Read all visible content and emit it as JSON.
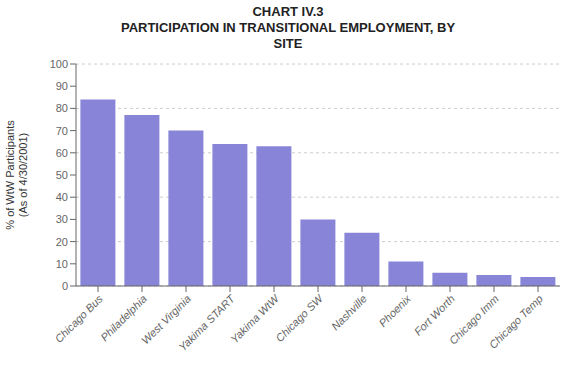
{
  "chart_data": {
    "type": "bar",
    "title": "CHART IV.3\nPARTICIPATION IN TRANSITIONAL EMPLOYMENT, BY\nSITE",
    "ylabel": "% of WtW Participants\n(As of 4/30/2001)",
    "categories": [
      "Chicago Bus",
      "Philadelphia",
      "West Virginia",
      "Yakima START",
      "Yakima WtW",
      "Chicago SW",
      "Nashville",
      "Phoenix",
      "Fort Worth",
      "Chicago Imm",
      "Chicago Temp"
    ],
    "values": [
      84,
      77,
      70,
      64,
      63,
      30,
      24,
      11,
      6,
      5,
      4
    ],
    "color": "#8884d8",
    "ylim": [
      0,
      100
    ],
    "yticks": [
      0,
      10,
      20,
      30,
      40,
      50,
      60,
      70,
      80,
      90,
      100
    ],
    "grid": true
  }
}
